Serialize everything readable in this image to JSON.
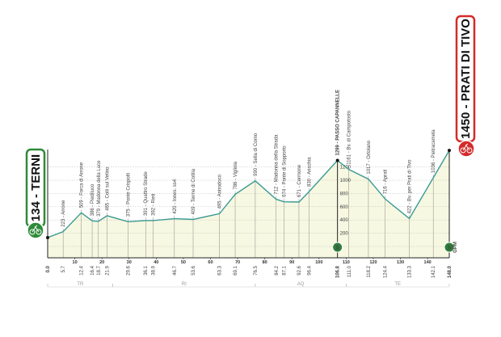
{
  "chart_data": {
    "type": "area",
    "title": "",
    "xlabel": "",
    "ylabel": "",
    "xlim": [
      0,
      148
    ],
    "ylim": [
      0,
      1450
    ],
    "grid": true,
    "colors": {
      "line": "#3a9a94",
      "fill": "#f7f8e1",
      "start": "#2e8b3a",
      "finish": "#d42a2a",
      "sprint": "#2e7d3a"
    },
    "start": {
      "label": "134 - TERNI",
      "km": 0,
      "elev": 134
    },
    "finish": {
      "label": "1450 - PRATI DI TIVO",
      "km": 148,
      "elev": 1450
    },
    "points": [
      {
        "km": 0.0,
        "elev": 134,
        "label": "",
        "km_label": "0.0"
      },
      {
        "km": 5.7,
        "elev": 223,
        "label": "223 - Arrone",
        "km_label": "5.7"
      },
      {
        "km": 12.4,
        "elev": 509,
        "label": "509 - Forca di Arrone",
        "km_label": "12.4"
      },
      {
        "km": 16.4,
        "elev": 386,
        "label": "386 - Piediluco",
        "km_label": "16.4"
      },
      {
        "km": 18.7,
        "elev": 379,
        "label": "379 - Madonna della Luce",
        "km_label": "18.7"
      },
      {
        "km": 21.9,
        "elev": 465,
        "label": "465 - Colli sul Velino",
        "km_label": "21.9"
      },
      {
        "km": 29.6,
        "elev": 375,
        "label": "375 - Ponte Crispolti",
        "km_label": "29.6"
      },
      {
        "km": 36.1,
        "elev": 391,
        "label": "391 - Quattro Strade",
        "km_label": "36.1"
      },
      {
        "km": 38.9,
        "elev": 392,
        "label": "392 - Rieti",
        "km_label": "38.9"
      },
      {
        "km": 46.7,
        "elev": 420,
        "label": "420 - Innes. ss4",
        "km_label": "46.7"
      },
      {
        "km": 53.6,
        "elev": 409,
        "label": "409 - Terme di Cotilia",
        "km_label": "53.6"
      },
      {
        "km": 63.3,
        "elev": 495,
        "label": "495 - Antrodoco",
        "km_label": "63.3"
      },
      {
        "km": 69.1,
        "elev": 786,
        "label": "786 - Vigliola",
        "km_label": "69.1"
      },
      {
        "km": 76.5,
        "elev": 990,
        "label": "990 - Sella di Corno",
        "km_label": "76.5"
      },
      {
        "km": 84.2,
        "elev": 712,
        "label": "712 - Madonna della Strada",
        "km_label": "84.2"
      },
      {
        "km": 87.1,
        "elev": 674,
        "label": "674 - Ponte di Sopporto",
        "km_label": "87.1"
      },
      {
        "km": 92.6,
        "elev": 671,
        "label": "671 - Cermone",
        "km_label": "92.6"
      },
      {
        "km": 96.4,
        "elev": 830,
        "label": "830 - Arischia",
        "km_label": "96.4"
      },
      {
        "km": 106.8,
        "elev": 1299,
        "label": "1299 - PASSO CAPANNELLE",
        "km_label": "106.8",
        "bold": true
      },
      {
        "km": 111.0,
        "elev": 1161,
        "label": "1161 - Bv. di Campotosto",
        "km_label": "111.0"
      },
      {
        "km": 118.2,
        "elev": 1017,
        "label": "1017 - Ortolano",
        "km_label": "118.2"
      },
      {
        "km": 124.4,
        "elev": 716,
        "label": "716 - Aprati",
        "km_label": "124.4"
      },
      {
        "km": 133.3,
        "elev": 422,
        "label": "422 - Bv. per Prati di Tivo",
        "km_label": "133.3"
      },
      {
        "km": 142.1,
        "elev": 1036,
        "label": "1036 - Pietracamela",
        "km_label": "142.1"
      },
      {
        "km": 148.0,
        "elev": 1450,
        "label": "",
        "km_label": "148.0"
      }
    ],
    "x_ticks": [
      10,
      20,
      30,
      40,
      50,
      60,
      70,
      80,
      90,
      100,
      110,
      120,
      130,
      140
    ],
    "y_ticks": [
      200,
      400,
      600,
      800,
      1000,
      1200
    ],
    "regions": [
      {
        "name": "TR",
        "from": 0,
        "to": 24
      },
      {
        "name": "RI",
        "from": 24,
        "to": 76.5
      },
      {
        "name": "AQ",
        "from": 76.5,
        "to": 110
      },
      {
        "name": "TE",
        "from": 110,
        "to": 148
      }
    ],
    "sprints": [
      {
        "km": 106.8,
        "symbol": "S"
      },
      {
        "km": 148.0,
        "symbol": "S"
      }
    ],
    "gpm_label": "GPM"
  }
}
